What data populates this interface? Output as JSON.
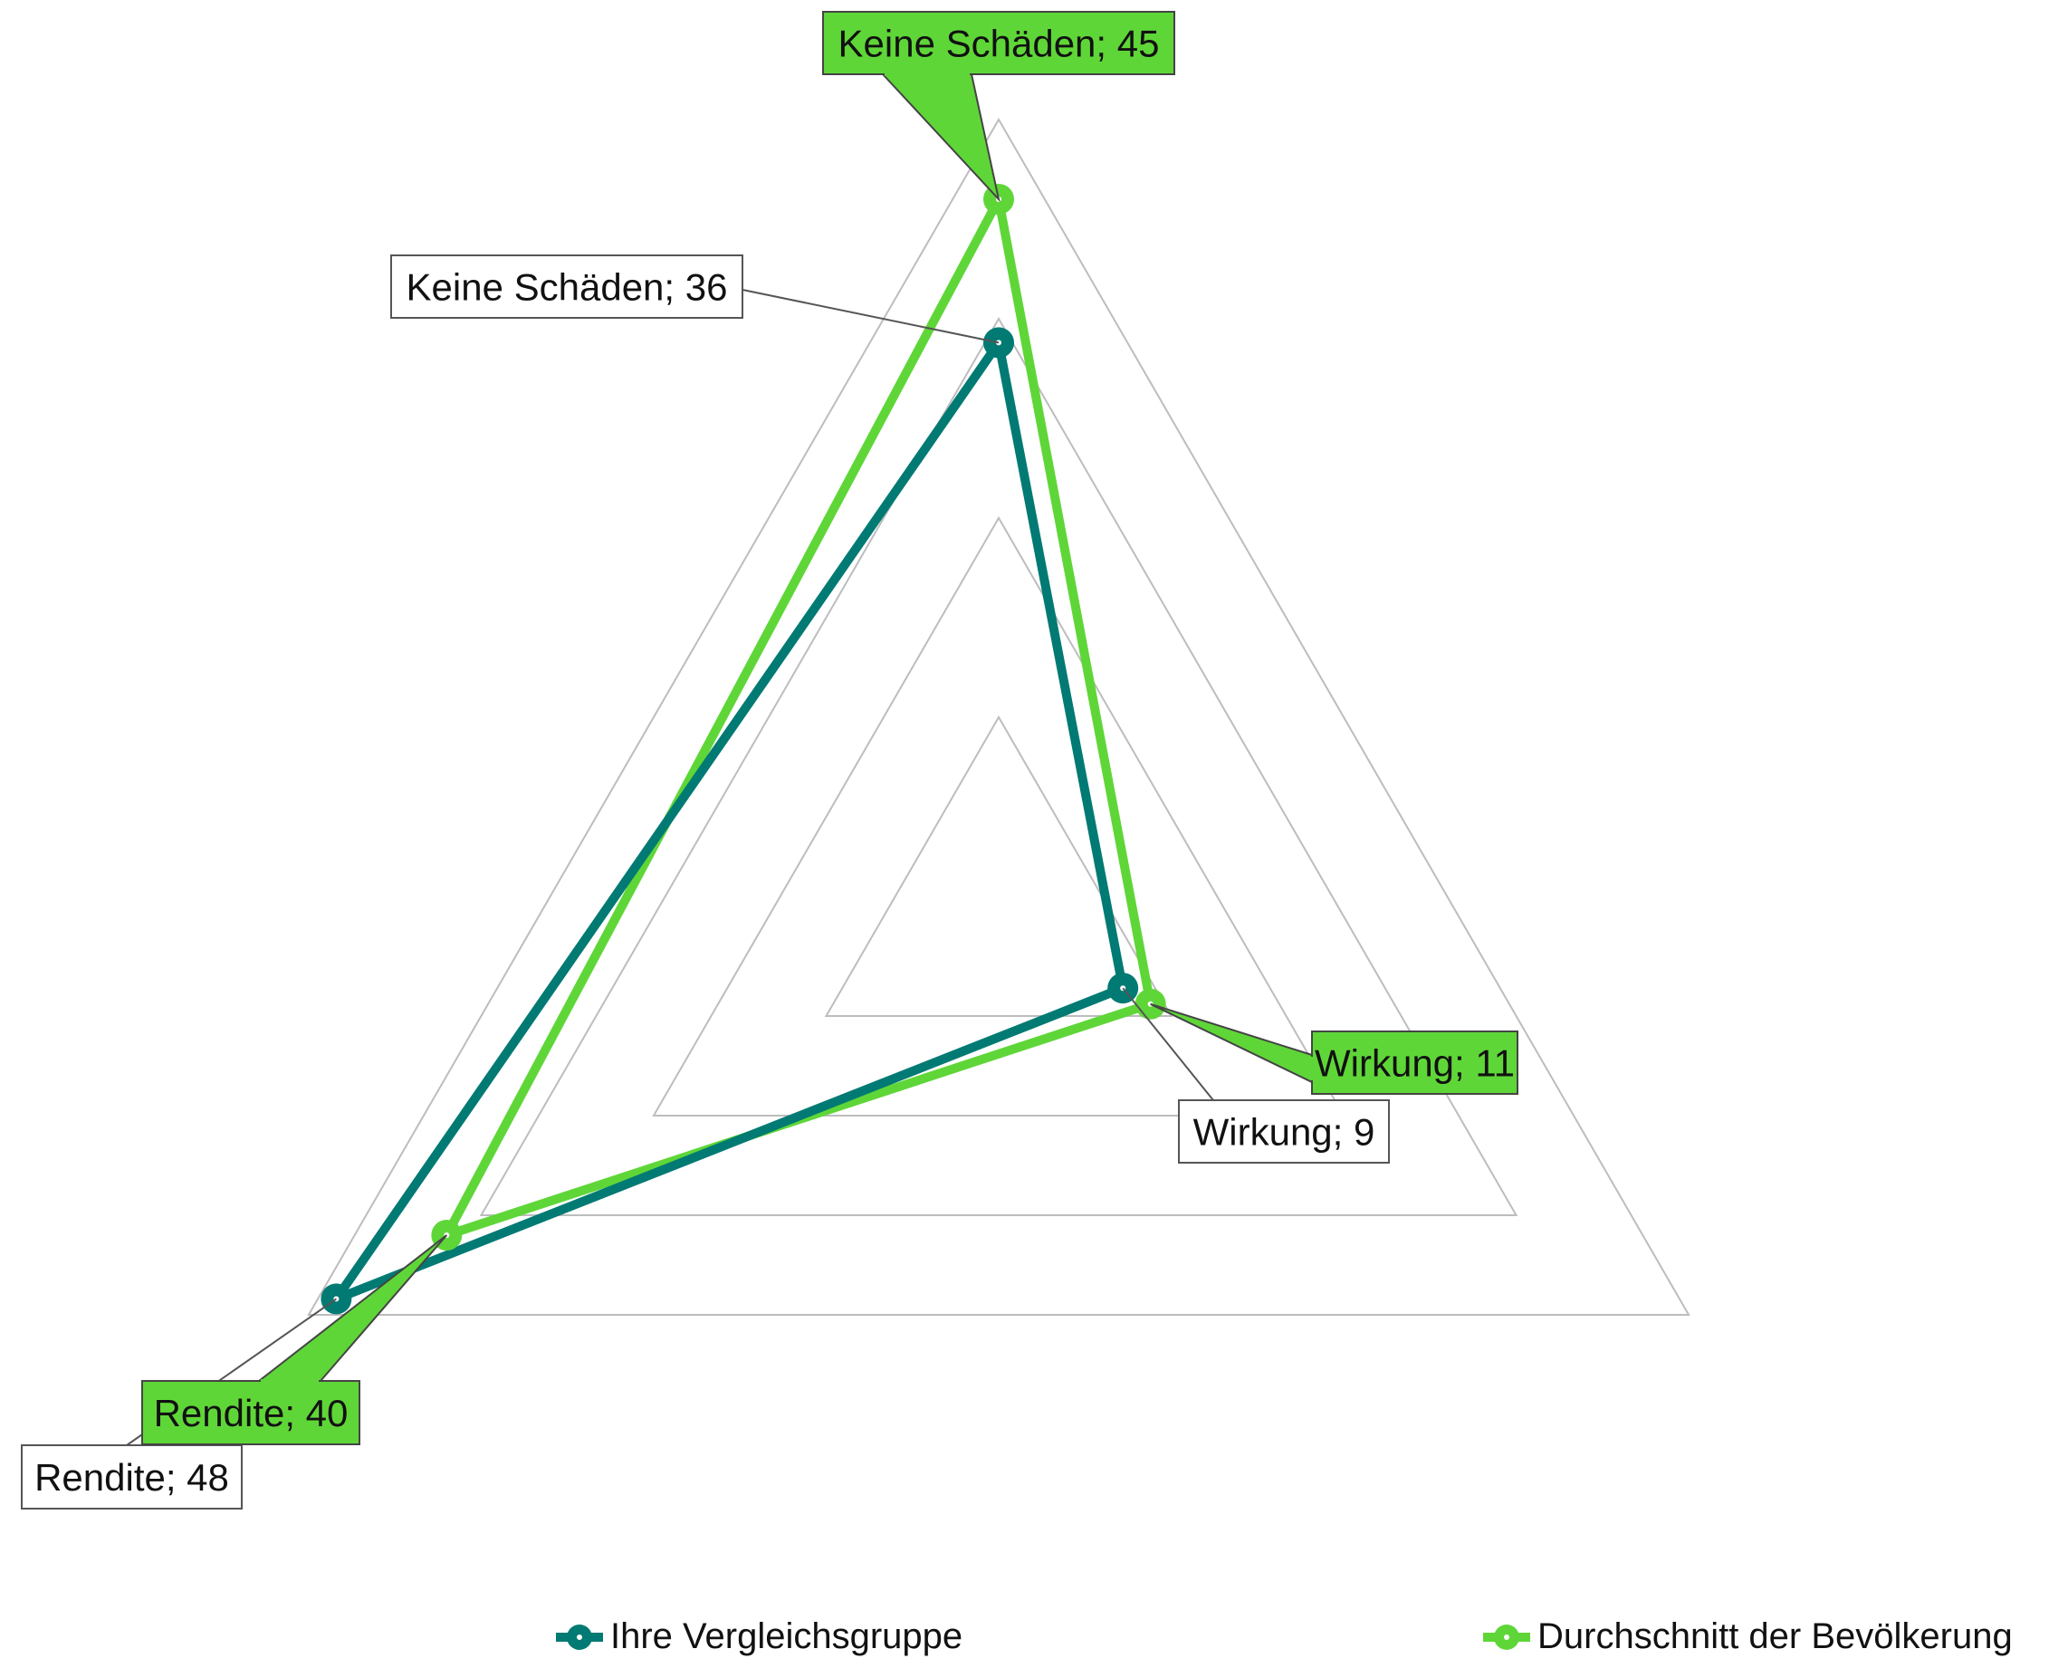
{
  "chart_data": {
    "type": "radar",
    "axes": [
      "Keine Schäden",
      "Wirkung",
      "Rendite"
    ],
    "grid_levels": 4,
    "series": [
      {
        "name": "Ihre Vergleichsgruppe",
        "color": "#007A73",
        "values": [
          36,
          9,
          48
        ],
        "labels": [
          "Keine Schäden; 36",
          "Wirkung; 9",
          "Rendite; 48"
        ],
        "label_style": "white-box"
      },
      {
        "name": "Durchschnitt der Bevölkerung",
        "color": "#5FD638",
        "values": [
          45,
          11,
          40
        ],
        "labels": [
          "Keine Schäden; 45",
          "Wirkung; 11",
          "Rendite; 40"
        ],
        "label_style": "green-box"
      }
    ],
    "legend_position": "bottom",
    "grid_color": "#BDBDBD"
  }
}
